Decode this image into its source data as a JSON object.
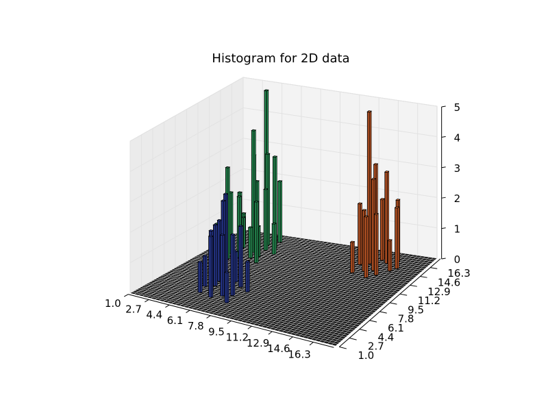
{
  "chart_data": {
    "type": "bar3d",
    "title": "Histogram for 2D data",
    "x_ticks": [
      "1.0",
      "2.7",
      "4.4",
      "6.1",
      "7.8",
      "9.5",
      "11.2",
      "12.9",
      "14.6",
      "16.3"
    ],
    "y_ticks": [
      "1.0",
      "2.7",
      "4.4",
      "6.1",
      "7.8",
      "9.5",
      "11.2",
      "12.9",
      "14.6",
      "16.3"
    ],
    "z_ticks": [
      "0",
      "1",
      "2",
      "3",
      "4",
      "5"
    ],
    "xlim": [
      1.0,
      18.0
    ],
    "ylim": [
      1.0,
      18.0
    ],
    "zlim": [
      0,
      5
    ],
    "grid": true,
    "series": [
      {
        "color": "#2ca25f",
        "bars": [
          [
            2.0,
            12.0,
            1
          ],
          [
            2.3,
            13.5,
            1
          ],
          [
            2.6,
            15.0,
            1
          ],
          [
            2.8,
            12.7,
            2
          ],
          [
            3.0,
            14.2,
            1
          ],
          [
            3.2,
            11.5,
            3
          ],
          [
            3.4,
            13.0,
            2
          ],
          [
            3.6,
            14.8,
            3
          ],
          [
            3.8,
            12.2,
            2
          ],
          [
            4.0,
            16.0,
            5
          ],
          [
            4.2,
            13.7,
            4
          ],
          [
            4.4,
            15.5,
            3
          ],
          [
            4.6,
            12.5,
            1
          ],
          [
            4.8,
            14.5,
            2
          ],
          [
            5.0,
            13.0,
            1
          ],
          [
            5.2,
            15.2,
            3
          ],
          [
            5.5,
            11.8,
            2
          ],
          [
            5.8,
            14.0,
            1
          ],
          [
            3.3,
            15.8,
            2
          ],
          [
            4.9,
            16.5,
            2
          ]
        ]
      },
      {
        "color": "#2c3ea2",
        "bars": [
          [
            4.6,
            5.5,
            1
          ],
          [
            4.9,
            4.2,
            1
          ],
          [
            5.2,
            6.0,
            2
          ],
          [
            5.5,
            4.8,
            2
          ],
          [
            5.8,
            6.5,
            3
          ],
          [
            6.0,
            3.8,
            2
          ],
          [
            6.3,
            5.2,
            3
          ],
          [
            6.6,
            4.5,
            2
          ],
          [
            6.9,
            6.8,
            2
          ],
          [
            7.2,
            5.0,
            2
          ],
          [
            7.5,
            3.5,
            1
          ],
          [
            7.8,
            6.2,
            1
          ],
          [
            6.1,
            7.5,
            1
          ],
          [
            5.0,
            7.0,
            2
          ]
        ]
      },
      {
        "color": "#d9622b",
        "bars": [
          [
            12.5,
            16.0,
            1
          ],
          [
            12.8,
            14.8,
            2
          ],
          [
            13.1,
            16.8,
            3
          ],
          [
            13.4,
            15.2,
            5
          ],
          [
            13.7,
            13.8,
            2
          ],
          [
            14.0,
            16.2,
            2
          ],
          [
            14.3,
            14.2,
            3
          ],
          [
            14.6,
            15.8,
            3
          ],
          [
            14.9,
            13.5,
            2
          ],
          [
            15.2,
            16.5,
            2
          ],
          [
            15.5,
            14.6,
            1
          ],
          [
            15.8,
            15.2,
            2
          ],
          [
            13.0,
            13.2,
            1
          ],
          [
            14.4,
            12.8,
            2
          ]
        ]
      }
    ]
  }
}
